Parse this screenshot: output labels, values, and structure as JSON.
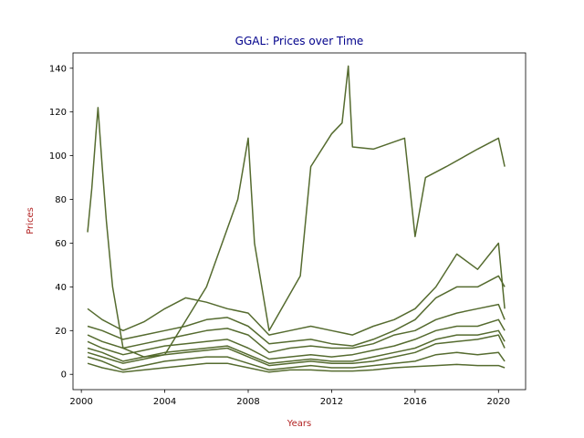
{
  "chart_data": {
    "type": "line",
    "title": "GGAL: Prices over Time",
    "xlabel": "Years",
    "ylabel": "Prices",
    "xlim": [
      1999.6,
      2021.3
    ],
    "ylim": [
      -7,
      147
    ],
    "x_ticks": [
      2000,
      2004,
      2008,
      2012,
      2016,
      2020
    ],
    "x_tick_labels": [
      "2000",
      "2004",
      "2008",
      "2012",
      "2016",
      "2020"
    ],
    "y_ticks": [
      0,
      20,
      40,
      60,
      80,
      100,
      120,
      140
    ],
    "y_tick_labels": [
      "0",
      "20",
      "40",
      "60",
      "80",
      "100",
      "120",
      "140"
    ],
    "grid": false,
    "legend": "none",
    "colors": {
      "line": "#556b2f",
      "title": "#00008b",
      "axis_label": "#b22222"
    },
    "series": [
      {
        "x": [
          2000.3,
          2000.5,
          2000.7,
          2000.8,
          2001.0,
          2001.2,
          2001.5,
          2002.0,
          2003.0,
          2004.0,
          2006.0,
          2007.5,
          2008.0,
          2008.3,
          2009.0,
          2010.5,
          2011.0,
          2012.0,
          2012.5,
          2012.8,
          2013.0,
          2014.0,
          2015.5,
          2016.0,
          2016.5,
          2017.5,
          2019.0,
          2020.0,
          2020.3
        ],
        "values": [
          65,
          85,
          110,
          122,
          95,
          70,
          40,
          12,
          8,
          9,
          40,
          80,
          108,
          60,
          20,
          45,
          95,
          110,
          115,
          141,
          104,
          103,
          108,
          63,
          90,
          95,
          103,
          108,
          95
        ]
      },
      {
        "x": [
          2000.3,
          2001.0,
          2002.0,
          2003.0,
          2004.0,
          2005.0,
          2006.0,
          2007.0,
          2008.0,
          2009.0,
          2010.0,
          2011.0,
          2012.0,
          2013.0,
          2014.0,
          2015.0,
          2016.0,
          2017.0,
          2018.0,
          2019.0,
          2020.0,
          2020.3
        ],
        "values": [
          30,
          25,
          20,
          24,
          30,
          35,
          33,
          30,
          28,
          18,
          20,
          22,
          20,
          18,
          22,
          25,
          30,
          40,
          55,
          48,
          60,
          30
        ]
      },
      {
        "x": [
          2000.3,
          2001.0,
          2002.0,
          2003.0,
          2004.0,
          2005.0,
          2006.0,
          2007.0,
          2008.0,
          2009.0,
          2010.0,
          2011.0,
          2012.0,
          2013.0,
          2014.0,
          2015.0,
          2016.0,
          2017.0,
          2018.0,
          2019.0,
          2020.0,
          2020.3
        ],
        "values": [
          22,
          20,
          16,
          18,
          20,
          22,
          25,
          26,
          22,
          14,
          15,
          16,
          14,
          13,
          16,
          20,
          25,
          35,
          40,
          40,
          45,
          40
        ]
      },
      {
        "x": [
          2000.3,
          2001.0,
          2002.0,
          2003.0,
          2004.0,
          2005.0,
          2006.0,
          2007.0,
          2008.0,
          2009.0,
          2010.0,
          2011.0,
          2012.0,
          2013.0,
          2014.0,
          2015.0,
          2016.0,
          2017.0,
          2018.0,
          2019.0,
          2020.0,
          2020.3
        ],
        "values": [
          18,
          15,
          12,
          14,
          16,
          18,
          20,
          21,
          18,
          10,
          12,
          13,
          12,
          12,
          14,
          18,
          20,
          25,
          28,
          30,
          32,
          25
        ]
      },
      {
        "x": [
          2000.3,
          2001.0,
          2002.0,
          2003.0,
          2004.0,
          2005.0,
          2006.0,
          2007.0,
          2008.0,
          2009.0,
          2010.0,
          2011.0,
          2012.0,
          2013.0,
          2014.0,
          2015.0,
          2016.0,
          2017.0,
          2018.0,
          2019.0,
          2020.0,
          2020.3
        ],
        "values": [
          15,
          12,
          9,
          11,
          13,
          14,
          15,
          16,
          12,
          7,
          8,
          9,
          8,
          9,
          11,
          13,
          16,
          20,
          22,
          22,
          25,
          20
        ]
      },
      {
        "x": [
          2000.3,
          2001.0,
          2002.0,
          2003.0,
          2004.0,
          2005.0,
          2006.0,
          2007.0,
          2008.0,
          2009.0,
          2010.0,
          2011.0,
          2012.0,
          2013.0,
          2014.0,
          2015.0,
          2016.0,
          2017.0,
          2018.0,
          2019.0,
          2020.0,
          2020.3
        ],
        "values": [
          10,
          8,
          5,
          7,
          9,
          10,
          11,
          12,
          8,
          4,
          5,
          6,
          5,
          5,
          6,
          8,
          10,
          14,
          15,
          16,
          18,
          12
        ]
      },
      {
        "x": [
          2000.3,
          2001.0,
          2002.0,
          2003.0,
          2004.0,
          2005.0,
          2006.0,
          2007.0,
          2008.0,
          2009.0,
          2010.0,
          2011.0,
          2012.0,
          2013.0,
          2014.0,
          2015.0,
          2016.0,
          2017.0,
          2018.0,
          2019.0,
          2020.0,
          2020.3
        ],
        "values": [
          8,
          6,
          2,
          4,
          6,
          7,
          8,
          8,
          5,
          2,
          3,
          4,
          3,
          3,
          4,
          5,
          6,
          9,
          10,
          9,
          10,
          6
        ]
      },
      {
        "x": [
          2000.3,
          2001.0,
          2002.0,
          2003.0,
          2004.0,
          2005.0,
          2006.0,
          2007.0,
          2008.0,
          2009.0,
          2010.0,
          2011.0,
          2012.0,
          2013.0,
          2014.0,
          2015.0,
          2016.0,
          2017.0,
          2018.0,
          2019.0,
          2020.0,
          2020.3
        ],
        "values": [
          12,
          10,
          6,
          8,
          10,
          11,
          12,
          13,
          9,
          5,
          6,
          7,
          6,
          6,
          8,
          10,
          12,
          16,
          18,
          18,
          20,
          15
        ]
      },
      {
        "x": [
          2000.3,
          2001.0,
          2002.0,
          2003.0,
          2004.0,
          2005.0,
          2006.0,
          2007.0,
          2008.0,
          2009.0,
          2010.0,
          2011.0,
          2012.0,
          2013.0,
          2014.0,
          2015.0,
          2016.0,
          2017.0,
          2018.0,
          2019.0,
          2020.0,
          2020.3
        ],
        "values": [
          5,
          3,
          1,
          2,
          3,
          4,
          5,
          5,
          3,
          1,
          2,
          2,
          1.5,
          1.5,
          2,
          3,
          3.5,
          4,
          4.5,
          4,
          4,
          3
        ]
      }
    ]
  }
}
